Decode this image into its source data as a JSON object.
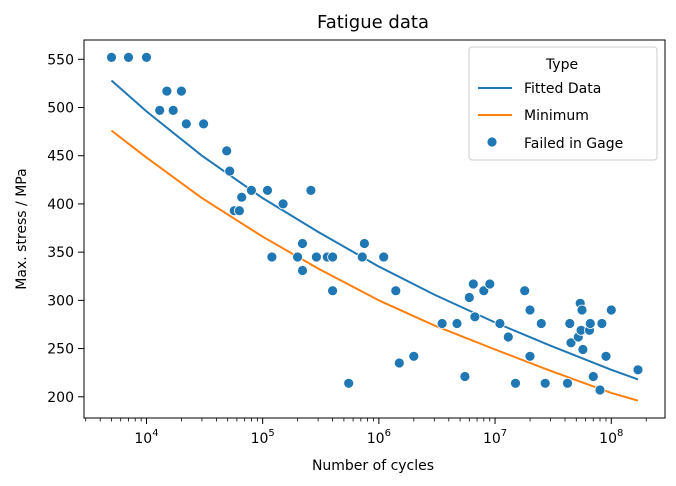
{
  "chart_data": {
    "type": "scatter",
    "title": "Fatigue data",
    "xlabel": "Number of cycles",
    "ylabel": "Max. stress / MPa",
    "xscale": "log",
    "xlim": [
      2900,
      290000000
    ],
    "ylim": [
      178,
      570
    ],
    "grid": false,
    "x_ticks": [
      {
        "value": 10000,
        "base": "10",
        "exp": "4"
      },
      {
        "value": 100000,
        "base": "10",
        "exp": "5"
      },
      {
        "value": 1000000,
        "base": "10",
        "exp": "6"
      },
      {
        "value": 10000000,
        "base": "10",
        "exp": "7"
      },
      {
        "value": 100000000,
        "base": "10",
        "exp": "8"
      }
    ],
    "y_ticks": [
      200,
      250,
      300,
      350,
      400,
      450,
      500,
      550
    ],
    "legend": {
      "title": "Type",
      "placement": "top-right",
      "entries": [
        "Fitted Data",
        "Minimum",
        "Failed in Gage"
      ]
    },
    "series": [
      {
        "name": "Fitted Data",
        "kind": "line",
        "color": "#1f77b4",
        "points": [
          [
            5000,
            528
          ],
          [
            10000,
            496
          ],
          [
            30000,
            450
          ],
          [
            100000,
            406
          ],
          [
            300000,
            371
          ],
          [
            1000000,
            335
          ],
          [
            3000000,
            306
          ],
          [
            10000000,
            277
          ],
          [
            30000000,
            253
          ],
          [
            100000000,
            228
          ],
          [
            170000000,
            218
          ]
        ]
      },
      {
        "name": "Minimum",
        "kind": "line",
        "color": "#ff7f0e",
        "points": [
          [
            5000,
            476
          ],
          [
            10000,
            448
          ],
          [
            30000,
            406
          ],
          [
            100000,
            366
          ],
          [
            300000,
            333
          ],
          [
            1000000,
            300
          ],
          [
            3000000,
            274
          ],
          [
            10000000,
            249
          ],
          [
            30000000,
            227
          ],
          [
            100000000,
            204
          ],
          [
            170000000,
            196
          ]
        ]
      },
      {
        "name": "Failed in Gage",
        "kind": "scatter",
        "color": "#1f77b4",
        "points": [
          [
            5000,
            552
          ],
          [
            7000,
            552
          ],
          [
            10000,
            552
          ],
          [
            13000,
            497
          ],
          [
            15000,
            517
          ],
          [
            17000,
            497
          ],
          [
            20000,
            517
          ],
          [
            22000,
            483
          ],
          [
            31000,
            483
          ],
          [
            49000,
            455
          ],
          [
            52000,
            434
          ],
          [
            57000,
            393
          ],
          [
            63000,
            393
          ],
          [
            66000,
            407
          ],
          [
            80000,
            414
          ],
          [
            110000,
            414
          ],
          [
            150000,
            400
          ],
          [
            120000,
            345
          ],
          [
            200000,
            345
          ],
          [
            220000,
            359
          ],
          [
            220000,
            331
          ],
          [
            260000,
            414
          ],
          [
            290000,
            345
          ],
          [
            360000,
            345
          ],
          [
            400000,
            345
          ],
          [
            400000,
            310
          ],
          [
            550000,
            214
          ],
          [
            720000,
            345
          ],
          [
            750000,
            359
          ],
          [
            1100000,
            345
          ],
          [
            1400000,
            310
          ],
          [
            1500000,
            235
          ],
          [
            2000000,
            242
          ],
          [
            3500000,
            276
          ],
          [
            4700000,
            276
          ],
          [
            5500000,
            221
          ],
          [
            6000000,
            303
          ],
          [
            6500000,
            317
          ],
          [
            6700000,
            283
          ],
          [
            8000000,
            310
          ],
          [
            9000000,
            317
          ],
          [
            11000000,
            276
          ],
          [
            13000000,
            262
          ],
          [
            15000000,
            214
          ],
          [
            18000000,
            310
          ],
          [
            20000000,
            290
          ],
          [
            20000000,
            242
          ],
          [
            25000000,
            276
          ],
          [
            27000000,
            214
          ],
          [
            42000000,
            214
          ],
          [
            44000000,
            276
          ],
          [
            45000000,
            256
          ],
          [
            52000000,
            262
          ],
          [
            54000000,
            297
          ],
          [
            55000000,
            269
          ],
          [
            56000000,
            290
          ],
          [
            57000000,
            249
          ],
          [
            65000000,
            269
          ],
          [
            66000000,
            276
          ],
          [
            70000000,
            221
          ],
          [
            80000000,
            207
          ],
          [
            83000000,
            276
          ],
          [
            90000000,
            242
          ],
          [
            100000000,
            290
          ],
          [
            170000000,
            228
          ]
        ]
      }
    ]
  }
}
